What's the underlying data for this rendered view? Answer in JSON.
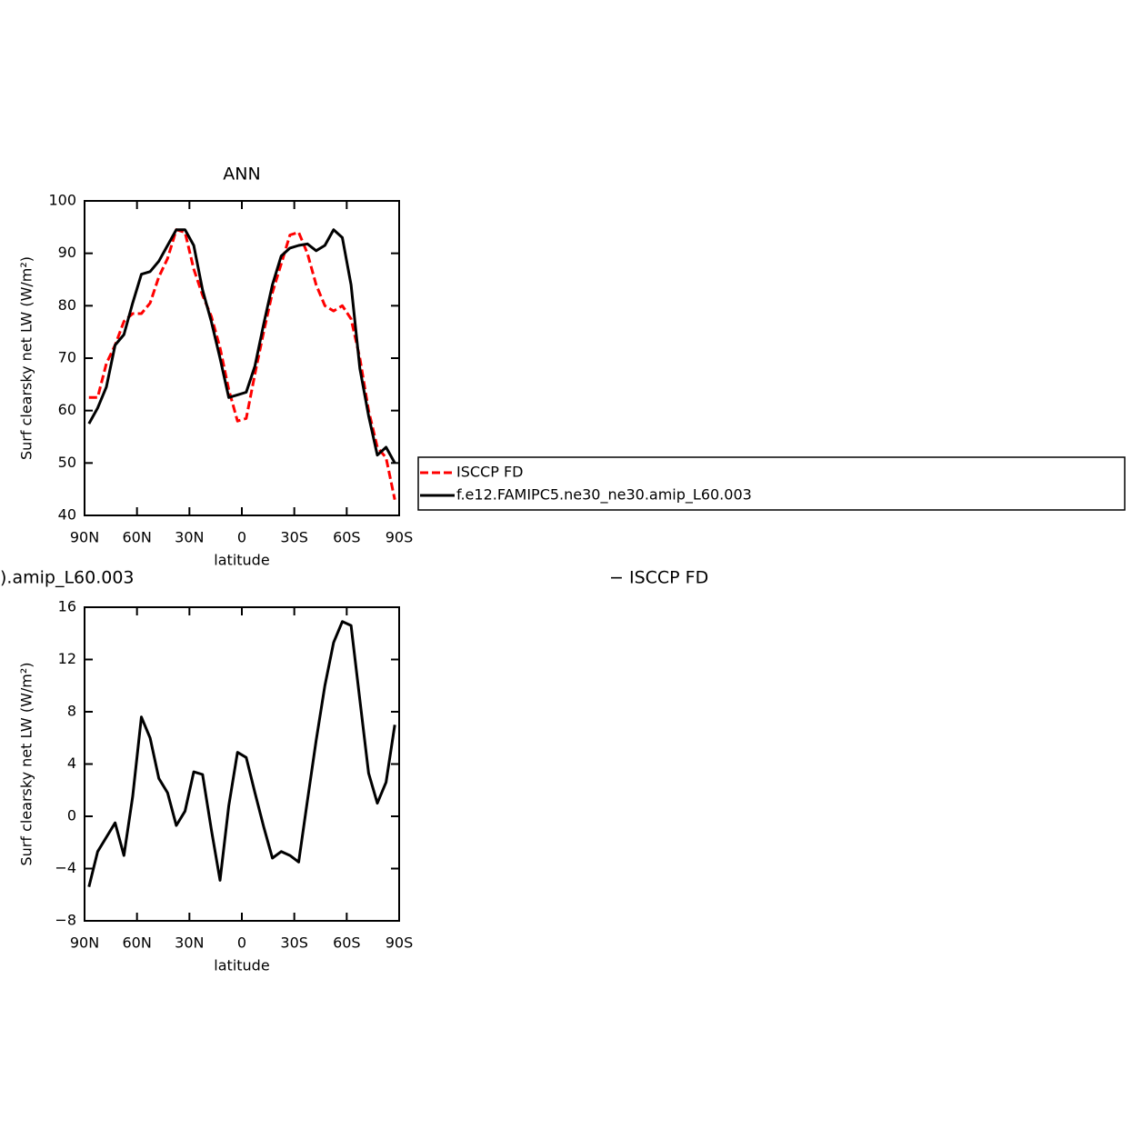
{
  "chart_data": [
    {
      "type": "line",
      "title": "ANN",
      "xlabel": "latitude",
      "ylabel": "Surf clearsky net LW (W/m²)",
      "x": [
        87.5,
        82.5,
        77.5,
        72.5,
        67.5,
        62.5,
        57.5,
        52.5,
        47.5,
        42.5,
        37.5,
        32.5,
        27.5,
        22.5,
        17.5,
        12.5,
        7.5,
        2.5,
        -2.5,
        -7.5,
        -12.5,
        -17.5,
        -22.5,
        -27.5,
        -32.5,
        -37.5,
        -42.5,
        -47.5,
        -52.5,
        -57.5,
        -62.5,
        -67.5,
        -72.5,
        -77.5,
        -82.5,
        -87.5
      ],
      "series": [
        {
          "name": "ISCCP FD",
          "color": "#ff0000",
          "dashed": true,
          "values": [
            62.5,
            62.5,
            69,
            72.5,
            77,
            78.5,
            78.5,
            80.5,
            85.5,
            89,
            94.5,
            94,
            87,
            82,
            78,
            72,
            64,
            58,
            58.5,
            67,
            75,
            82.5,
            88,
            93.5,
            94,
            90,
            84,
            80,
            79,
            80,
            77.5,
            70,
            60,
            53,
            51,
            43
          ]
        },
        {
          "name": "f.e12.FAMIPC5.ne30_ne30.amip_L60.003",
          "color": "#000000",
          "dashed": false,
          "values": [
            57.5,
            60.5,
            64.5,
            72.5,
            74.5,
            80.5,
            86,
            86.5,
            88.5,
            91.5,
            94.5,
            94.5,
            91.5,
            83,
            77,
            70,
            62.5,
            63,
            63.5,
            68.5,
            76.5,
            84,
            89.5,
            91,
            91.5,
            91.8,
            90.5,
            91.5,
            94.5,
            93,
            84,
            68,
            59,
            51.5,
            53,
            50
          ]
        }
      ],
      "xlim": [
        90,
        -90
      ],
      "xticks": [
        {
          "value": 90,
          "label": "90N"
        },
        {
          "value": 60,
          "label": "60N"
        },
        {
          "value": 30,
          "label": "30N"
        },
        0,
        {
          "value": -30,
          "label": "30S"
        },
        {
          "value": -60,
          "label": "60S"
        },
        {
          "value": -90,
          "label": "90S"
        }
      ],
      "ylim": [
        40,
        100
      ],
      "yticks": [
        40,
        50,
        60,
        70,
        80,
        90,
        100
      ],
      "legend": "right"
    },
    {
      "type": "line",
      "title": ").amip_L60.003",
      "annotation": "− ISCCP FD",
      "xlabel": "latitude",
      "ylabel": "Surf clearsky net LW (W/m²)",
      "x": [
        87.5,
        82.5,
        77.5,
        72.5,
        67.5,
        62.5,
        57.5,
        52.5,
        47.5,
        42.5,
        37.5,
        32.5,
        27.5,
        22.5,
        17.5,
        12.5,
        7.5,
        2.5,
        -2.5,
        -7.5,
        -12.5,
        -17.5,
        -22.5,
        -27.5,
        -32.5,
        -37.5,
        -42.5,
        -47.5,
        -52.5,
        -57.5,
        -62.5,
        -67.5,
        -72.5,
        -77.5,
        -82.5,
        -87.5
      ],
      "series": [
        {
          "color": "#000000",
          "dashed": false,
          "values": [
            -5.4,
            -2.7,
            -1.6,
            -0.5,
            -3.0,
            1.5,
            7.6,
            6.0,
            2.9,
            1.8,
            -0.7,
            0.4,
            3.4,
            3.2,
            -1.0,
            -4.9,
            0.8,
            4.9,
            4.5,
            1.8,
            -0.8,
            -3.2,
            -2.7,
            -3.0,
            -3.5,
            1.2,
            5.8,
            10.0,
            13.3,
            14.9,
            14.6,
            8.9,
            3.3,
            1.0,
            2.6,
            7.0
          ]
        }
      ],
      "xlim": [
        90,
        -90
      ],
      "xticks": [
        {
          "value": 90,
          "label": "90N"
        },
        {
          "value": 60,
          "label": "60N"
        },
        {
          "value": 30,
          "label": "30N"
        },
        0,
        {
          "value": -30,
          "label": "30S"
        },
        {
          "value": -60,
          "label": "60S"
        },
        {
          "value": -90,
          "label": "90S"
        }
      ],
      "ylim": [
        -8,
        16
      ],
      "yticks": [
        {
          "value": -8,
          "label": "−8"
        },
        {
          "value": -4,
          "label": "−4"
        },
        0,
        4,
        8,
        12,
        16
      ]
    }
  ]
}
